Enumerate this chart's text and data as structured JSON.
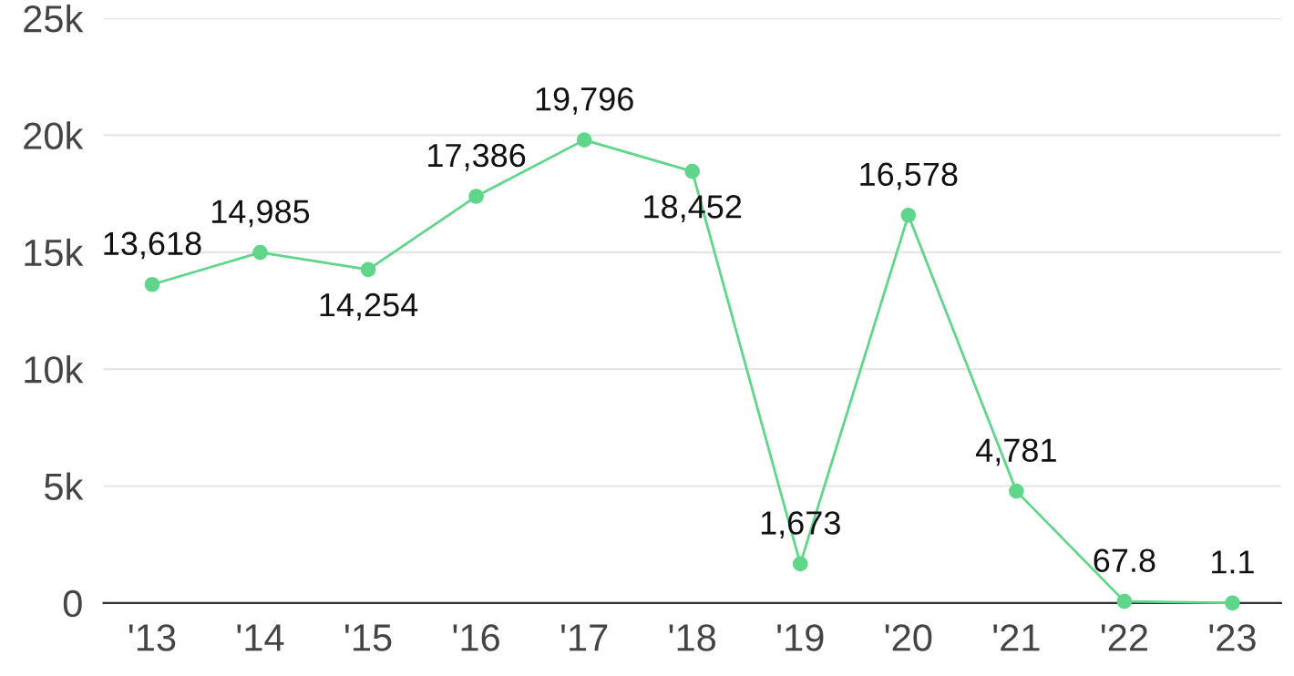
{
  "chart_data": {
    "type": "line",
    "categories": [
      "'13",
      "'14",
      "'15",
      "'16",
      "'17",
      "'18",
      "'19",
      "'20",
      "'21",
      "'22",
      "'23"
    ],
    "series": [
      {
        "color": "#5fd68a",
        "values": [
          13618,
          14985,
          14254,
          17386,
          19796,
          18452,
          1673,
          16578,
          4781,
          67.8,
          1.1
        ],
        "value_labels": [
          "13,618",
          "14,985",
          "14,254",
          "17,386",
          "19,796",
          "18,452",
          "1,673",
          "16,578",
          "4,781",
          "67.8",
          "1.1"
        ]
      }
    ],
    "ylim": [
      0,
      25000
    ],
    "yticks": [
      0,
      {
        "value": 5000,
        "label": "5k"
      },
      {
        "value": 10000,
        "label": "10k"
      },
      {
        "value": 15000,
        "label": "15k"
      },
      {
        "value": 20000,
        "label": "20k"
      },
      {
        "value": 25000,
        "label": "25k"
      }
    ],
    "grid": "y",
    "marker": "circle",
    "line_style": "solid"
  }
}
